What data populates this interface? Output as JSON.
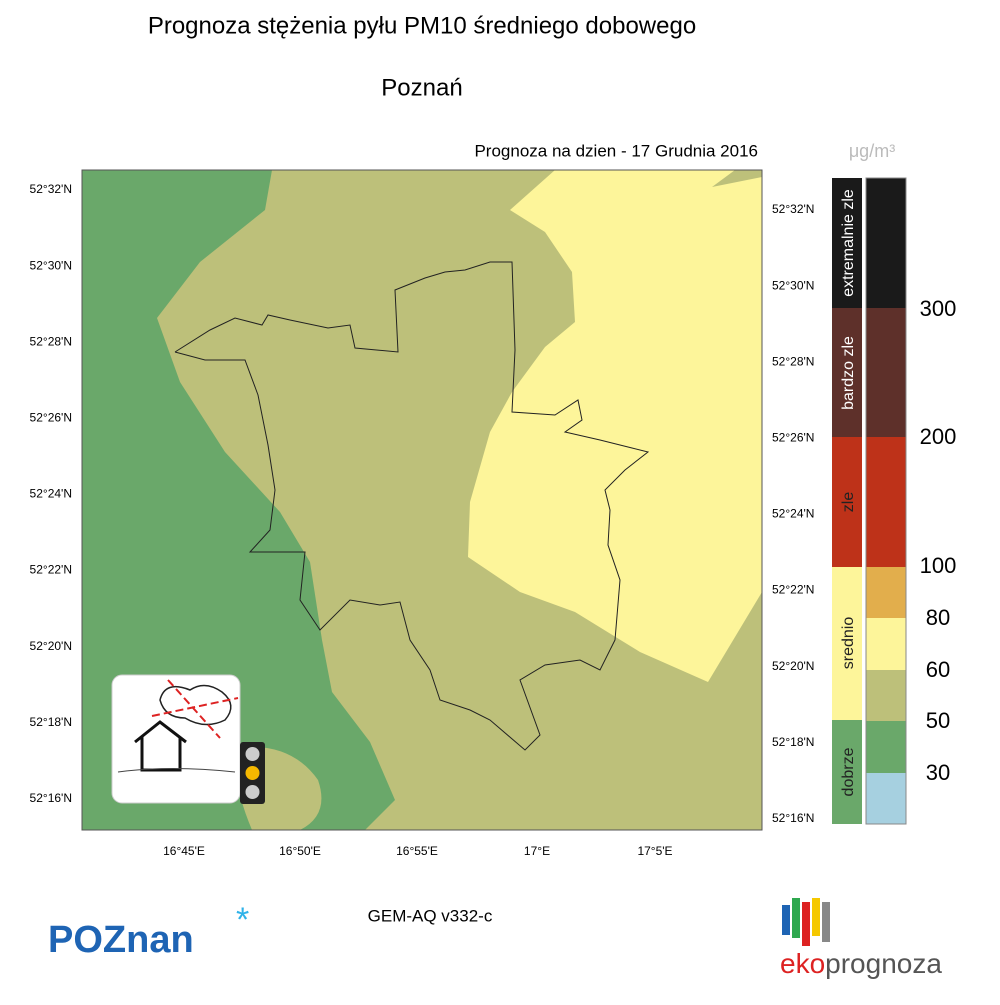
{
  "title": "Prognoza stężenia pyłu PM10 średniego dobowego",
  "subtitle": "Poznań",
  "forecast_date": "Prognoza na dzien -  17 Grudnia 2016",
  "unit": "μg/m³",
  "lat_labels_left": [
    "52°32'N",
    "52°30'N",
    "52°28'N",
    "52°26'N",
    "52°24'N",
    "52°22'N",
    "52°20'N",
    "52°18'N",
    "52°16'N"
  ],
  "lat_labels_right": [
    "52°32'N",
    "52°30'N",
    "52°28'N",
    "52°26'N",
    "52°24'N",
    "52°22'N",
    "52°20'N",
    "52°18'N",
    "52°16'N"
  ],
  "lon_labels": [
    "16°45'E",
    "16°50'E",
    "16°55'E",
    "17°E",
    "17°5'E"
  ],
  "legend": {
    "categories": [
      "extremalnie zle",
      "bardzo zle",
      "zle",
      "srednio",
      "dobrze"
    ],
    "ticks": [
      300,
      200,
      100,
      80,
      60,
      50,
      30
    ]
  },
  "model": "GEM-AQ v332-c",
  "logos": {
    "poznan": "POZnan",
    "eko": "eko",
    "prognoza": "prognoza"
  }
}
